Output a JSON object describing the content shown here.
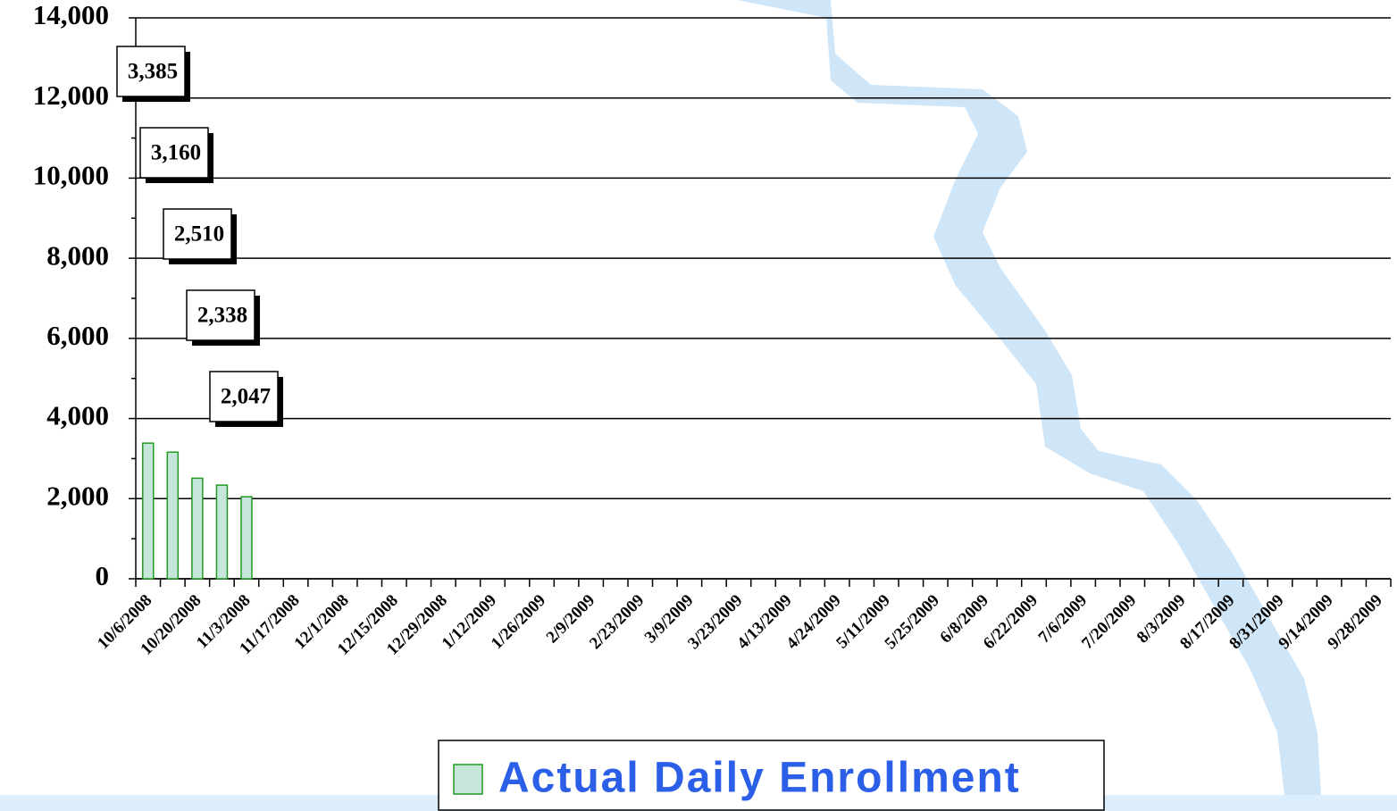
{
  "chart_data": {
    "type": "bar",
    "categories": [
      "10/6/2008",
      null,
      "10/20/2008",
      null,
      "11/3/2008",
      null,
      "11/17/2008",
      null,
      "12/1/2008",
      null,
      "12/15/2008",
      null,
      "12/29/2008",
      null,
      "1/12/2009",
      null,
      "1/26/2009",
      null,
      "2/9/2009",
      null,
      "2/23/2009",
      null,
      "3/9/2009",
      null,
      "3/23/2009",
      null,
      "4/13/2009",
      null,
      "4/24/2009",
      null,
      "5/11/2009",
      null,
      "5/25/2009",
      null,
      "6/8/2009",
      null,
      "6/22/2009",
      null,
      "7/6/2009",
      null,
      "7/20/2009",
      null,
      "8/3/2009",
      null,
      "8/17/2009",
      null,
      "8/31/2009",
      null,
      "9/14/2009",
      null,
      "9/28/2009"
    ],
    "series": [
      {
        "name": "Actual Daily Enrollment",
        "color": "#c6e6dc",
        "values": [
          3385,
          3160,
          2510,
          2338,
          2047,
          null,
          null,
          null,
          null,
          null,
          null,
          null,
          null,
          null,
          null,
          null,
          null,
          null,
          null,
          null,
          null,
          null,
          null,
          null,
          null,
          null,
          null,
          null,
          null,
          null,
          null,
          null,
          null,
          null,
          null,
          null,
          null,
          null,
          null,
          null,
          null,
          null,
          null,
          null,
          null,
          null,
          null,
          null,
          null,
          null,
          null
        ],
        "value_labels": [
          "3,385",
          "3,160",
          "2,510",
          "2,338",
          "2,047",
          null,
          null,
          null,
          null,
          null,
          null,
          null,
          null,
          null,
          null,
          null,
          null,
          null,
          null,
          null,
          null,
          null,
          null,
          null,
          null,
          null,
          null,
          null,
          null,
          null,
          null,
          null,
          null,
          null,
          null,
          null,
          null,
          null,
          null,
          null,
          null,
          null,
          null,
          null,
          null,
          null,
          null,
          null,
          null,
          null,
          null
        ]
      }
    ],
    "ylim": [
      0,
      14000
    ],
    "yticks": [
      {
        "value": 0,
        "label": "0"
      },
      {
        "value": 2000,
        "label": "2,000"
      },
      {
        "value": 4000,
        "label": "4,000"
      },
      {
        "value": 6000,
        "label": "6,000"
      },
      {
        "value": 8000,
        "label": "8,000"
      },
      {
        "value": 10000,
        "label": "10,000"
      },
      {
        "value": 12000,
        "label": "12,000"
      },
      {
        "value": 14000,
        "label": "14,000"
      }
    ],
    "grid": true,
    "legend": "bottom"
  }
}
